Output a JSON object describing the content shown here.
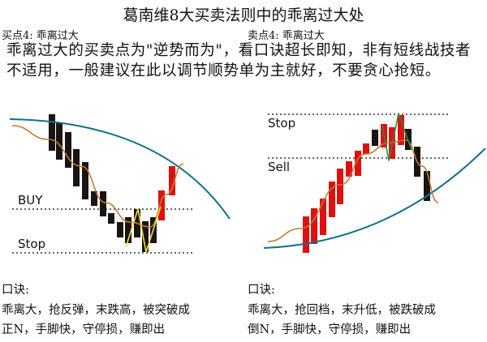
{
  "title": "葛南维8大买卖法则中的乖离过大处",
  "left_label": "买点4: 乖离过大",
  "right_label": "卖点4: 乖离过大",
  "paragraph": "乖离过大的买卖点为\"逆势而为\"，看口诀超长即知，非有短线战技者不适用，一般建议在此以调节顺势单为主就好，不要贪心抢短。",
  "left_chart": {
    "buy_label": "BUY",
    "stop_label": "Stop"
  },
  "right_chart": {
    "stop_label": "Stop",
    "sell_label": "Sell"
  },
  "left_mnemonic": {
    "heading": "口诀:",
    "line1": "乖离大，抢反弹，末跌高，被突破成",
    "line2": "正N，手脚快，守停损，赚即出"
  },
  "right_mnemonic": {
    "heading": "口诀:",
    "line1": "乖离大，抢回档，末升低，被跌破成",
    "line2": "倒N，手脚快，守停损，赚即出"
  },
  "colors": {
    "bull": "#e01010",
    "bear": "#1a1414",
    "long_ma": "#10708a",
    "short_ma": "#c07a30",
    "n_pattern_left": "#f0e040",
    "n_pattern_right": "#2a8a40"
  }
}
